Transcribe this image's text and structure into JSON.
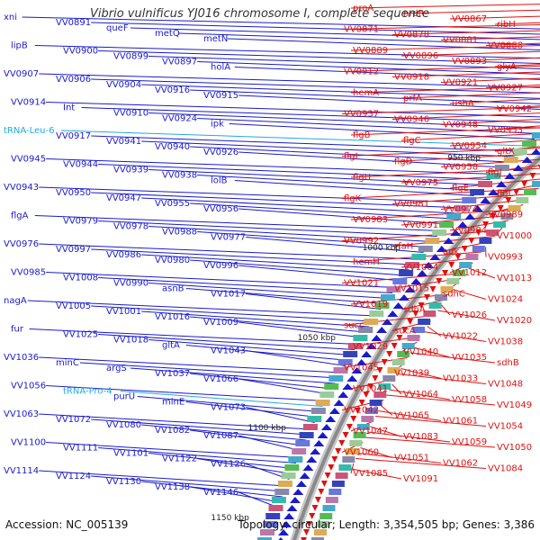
{
  "title": "Vibrio vulnificus YJ016 chromosome I, complete sequence",
  "footer": {
    "accession": "Accession: NC_005139",
    "topology": "Topology: circular; Length: 3,354,505 bp; Genes: 3,386"
  },
  "colors": {
    "left_strand": "#1a1acc",
    "right_strand": "#dd1111",
    "rna": "#22aadd",
    "backbone": "#8a8a8a",
    "tick_label": "#222222"
  },
  "kbp_ticks": [
    "900 kbp",
    "950 kbp",
    "1000 kbp",
    "1050 kbp",
    "1100 kbp",
    "1150 kbp"
  ],
  "left_genes": [
    "xni",
    "VV0891",
    "queF",
    "metQ",
    "metN",
    "lipB",
    "VV0900",
    "VV0899",
    "VV0897",
    "holA",
    "VV0907",
    "VV0906",
    "VV0904",
    "VV0916",
    "VV0915",
    "VV0914",
    "Int",
    "VV0910",
    "VV0924",
    "ipk",
    "tRNA-Leu-6",
    "VV0917",
    "VV0941",
    "VV0940",
    "VV0926",
    "VV0945",
    "VV0944",
    "VV0939",
    "VV0938",
    "lolB",
    "VV0943",
    "VV0950",
    "VV0947",
    "VV0955",
    "VV0956",
    "flgA",
    "VV0979",
    "VV0978",
    "VV0988",
    "VV0977",
    "VV0976",
    "VV0997",
    "VV0986",
    "VV0980",
    "VV0996",
    "VV0985",
    "VV1008",
    "VV0990",
    "asnB",
    "VV1017",
    "nagA",
    "VV1005",
    "VV1001",
    "VV1016",
    "VV1009",
    "fur",
    "VV1025",
    "VV1018",
    "gltA",
    "VV1043",
    "VV1036",
    "minC",
    "argS",
    "VV1037",
    "VV1066",
    "VV1056",
    "tRNA-Pro-4",
    "purU",
    "minE",
    "VV1073",
    "VV1063",
    "VV1072",
    "VV1080",
    "VV1082",
    "VV1087",
    "VV1100",
    "VV1111",
    "VV1101",
    "VV1122",
    "VV1126",
    "VV1114",
    "VV1124",
    "VV1130",
    "VV1138",
    "VV1146"
  ],
  "right_genes": [
    "proA",
    "nrdR",
    "VV0867",
    "ribH",
    "VV0871",
    "VV0878",
    "VV0881",
    "VV0888",
    "VV0889",
    "VV0896",
    "VV0893",
    "glyA",
    "VV0912",
    "VV0918",
    "VV0921",
    "VV0927",
    "hemA",
    "prfA",
    "ushA",
    "VV0942",
    "VV0937",
    "VV0946",
    "VV0948",
    "VV0953",
    "flgB",
    "flgC",
    "VV0954",
    "gltX",
    "flgI",
    "flgD",
    "VV0958",
    "flgJ",
    "flgH",
    "VV0975",
    "flgE",
    "flgL",
    "flgK",
    "VV0981",
    "VV0974",
    "VV0989",
    "VV0983",
    "VV0991",
    "VV0984",
    "VV1000",
    "VV0992",
    "rfaH",
    "adk",
    "VV0993",
    "hemH",
    "VV1004",
    "VV1012",
    "VV1013",
    "VV1021",
    "VV1015",
    "sdhC",
    "VV1024",
    "VV1019",
    "sdhA",
    "VV1026",
    "VV1020",
    "succ",
    "sucA",
    "VV1022",
    "VV1038",
    "VV1029",
    "VV1040",
    "VV1035",
    "sdhB",
    "VV1045",
    "VV1039",
    "VV1033",
    "VV1048",
    "VV1041",
    "VV1064",
    "VV1058",
    "VV1049",
    "VV1042",
    "VV1065",
    "VV1061",
    "VV1054",
    "VV1047",
    "VV1083",
    "VV1059",
    "VV1050",
    "VV1060",
    "VV1051",
    "VV1062",
    "VV1084",
    "VV1085",
    "VV1091"
  ]
}
